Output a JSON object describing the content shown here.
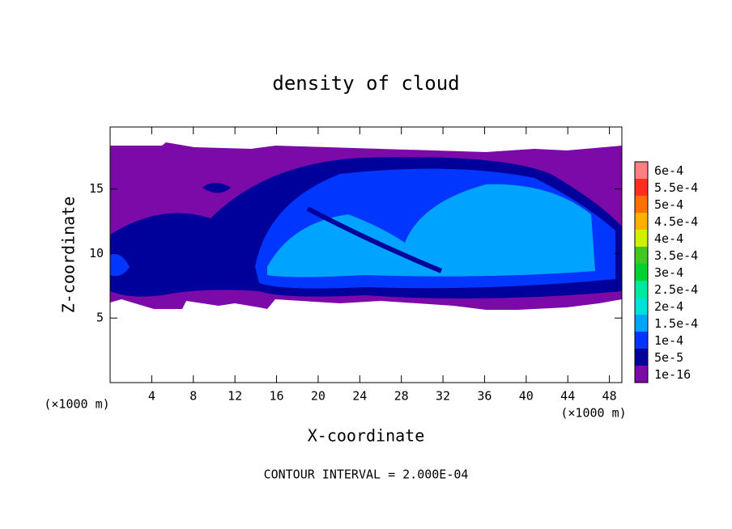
{
  "chart_data": {
    "type": "contour",
    "title": "density of cloud",
    "x_label": "X-coordinate",
    "y_label": "Z-coordinate",
    "x_unit": "(×1000 m)",
    "y_unit": "(×1000 m)",
    "annotation": "CONTOUR INTERVAL = 2.000E-04",
    "xlim": [
      0,
      49.2
    ],
    "xticks": [
      4,
      8,
      12,
      16,
      20,
      24,
      28,
      32,
      36,
      40,
      44,
      48
    ],
    "ylim": [
      0,
      19.8
    ],
    "yticks": [
      5,
      10,
      15
    ],
    "levels": [
      {
        "value": 1e-16,
        "label": "1e-16"
      },
      {
        "value": 5e-05,
        "label": "5e-5"
      },
      {
        "value": 0.0001,
        "label": "1e-4"
      },
      {
        "value": 0.00015,
        "label": "1.5e-4"
      },
      {
        "value": 0.0002,
        "label": "2e-4"
      },
      {
        "value": 0.00025,
        "label": "2.5e-4"
      },
      {
        "value": 0.0003,
        "label": "3e-4"
      },
      {
        "value": 0.00035,
        "label": "3.5e-4"
      },
      {
        "value": 0.0004,
        "label": "4e-4"
      },
      {
        "value": 0.00045,
        "label": "4.5e-4"
      },
      {
        "value": 0.0005,
        "label": "5e-4"
      },
      {
        "value": 0.00055,
        "label": "5.5e-4"
      },
      {
        "value": 0.0006,
        "label": "6e-4"
      }
    ],
    "level_colors": [
      "#7b0aa8",
      "#00009a",
      "#0036ff",
      "#00a4ff",
      "#00e0d8",
      "#00e8a0",
      "#00d030",
      "#40c820",
      "#d0f000",
      "#ffb000",
      "#ff7000",
      "#ff3020",
      "#ff8080"
    ]
  }
}
